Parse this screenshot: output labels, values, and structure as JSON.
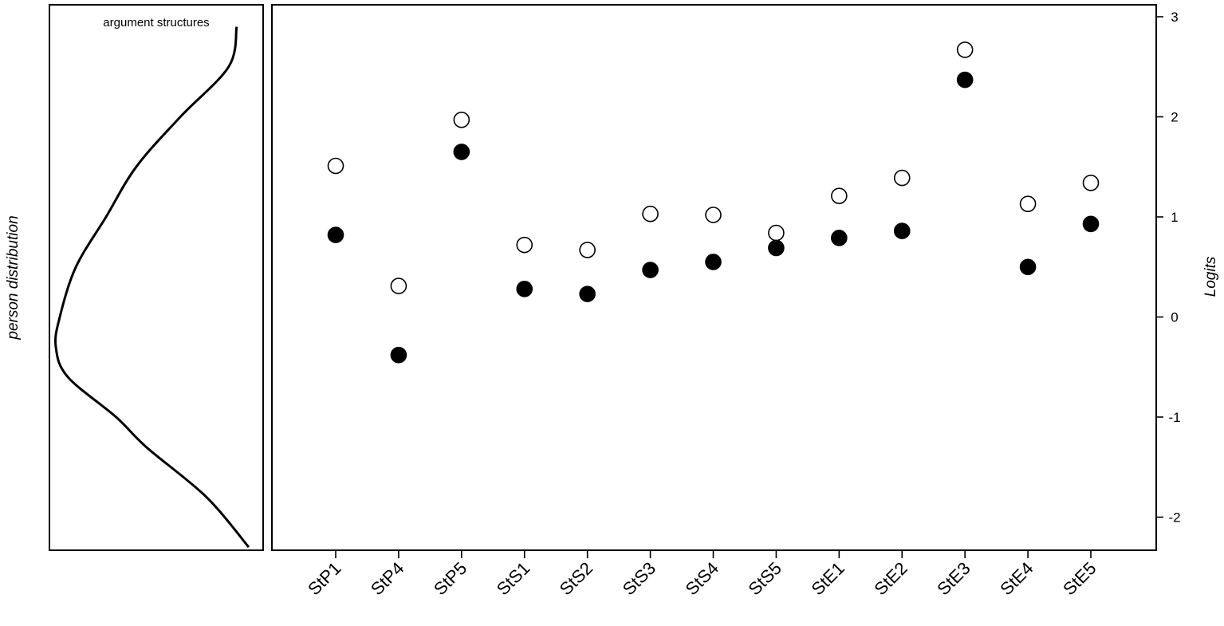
{
  "chart_data": [
    {
      "type": "line",
      "panel": "person-distribution",
      "title": "argument structures",
      "ylabel": "person distribution",
      "orientation": "vertical",
      "y": [
        2.9,
        2.5,
        2.0,
        1.5,
        1.0,
        0.5,
        0.0,
        -0.3,
        -0.6,
        -1.0,
        -1.3,
        -1.8,
        -2.3
      ],
      "density": [
        0.1,
        0.14,
        0.38,
        0.6,
        0.75,
        0.9,
        0.98,
        1.0,
        0.94,
        0.7,
        0.55,
        0.25,
        0.04
      ]
    },
    {
      "type": "scatter",
      "panel": "item-thresholds",
      "ylabel": "Logits",
      "ylim": [
        -2.3,
        3.05
      ],
      "yticks": [
        -2,
        -1,
        0,
        1,
        2,
        3
      ],
      "categories": [
        "StP1",
        "StP4",
        "StP5",
        "StS1",
        "StS2",
        "StS3",
        "StS4",
        "StS5",
        "StE1",
        "StE2",
        "StE3",
        "StE4",
        "StE5"
      ],
      "series": [
        {
          "style": "open-circle",
          "color": "#ffffff",
          "values": [
            1.51,
            0.31,
            1.97,
            0.72,
            0.67,
            1.03,
            1.02,
            0.84,
            1.21,
            1.39,
            2.67,
            1.13,
            1.34
          ]
        },
        {
          "style": "filled-circle",
          "color": "#000000",
          "values": [
            0.82,
            -0.38,
            1.65,
            0.28,
            0.23,
            0.47,
            0.55,
            0.69,
            0.79,
            0.86,
            2.37,
            0.5,
            0.93
          ]
        }
      ],
      "grid": false,
      "legend": "none"
    }
  ]
}
